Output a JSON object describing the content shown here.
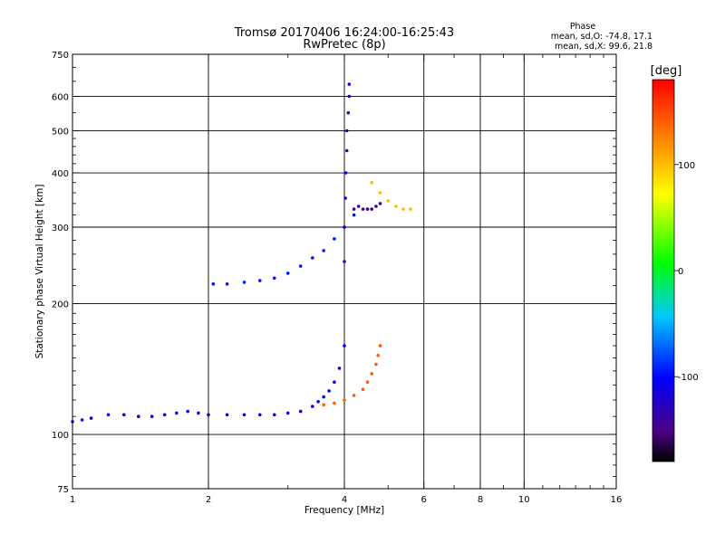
{
  "chart_data": {
    "type": "scatter",
    "title": "Tromsø 20170406 16:24:00-16:25:43",
    "subtitle": "RwPretec (8p)",
    "phase_stats": {
      "heading": "Phase",
      "line1": "mean, sd,O: -74.8, 17.1",
      "line2": "mean, sd,X:  99.6, 21.8"
    },
    "xlabel": "Frequency [MHz]",
    "ylabel": "Stationary phase Virtual Height [km]",
    "x_scale": "log",
    "y_scale": "log",
    "xlim": [
      1,
      16
    ],
    "ylim": [
      75,
      750
    ],
    "x_ticks": [
      1,
      2,
      4,
      6,
      8,
      10,
      16
    ],
    "x_tick_labels": [
      "1",
      "2",
      "4",
      "6",
      "8",
      "10",
      "16"
    ],
    "y_ticks": [
      75,
      100,
      200,
      300,
      400,
      500,
      600,
      750
    ],
    "y_tick_labels": [
      "75",
      "100",
      "200",
      "300",
      "400",
      "500",
      "600",
      "750"
    ],
    "grid": true,
    "colorbar": {
      "label": "[deg]",
      "range": [
        -180,
        180
      ],
      "ticks": [
        100,
        0,
        -100
      ],
      "tick_labels": [
        "100",
        "0",
        "-100"
      ]
    },
    "series": [
      {
        "trace": "O-mode low trace",
        "x": [
          1.0,
          1.05,
          1.1,
          1.2,
          1.3,
          1.4,
          1.5,
          1.6,
          1.7,
          1.8,
          1.9,
          2.0,
          2.2,
          2.4,
          2.6,
          2.8,
          3.0,
          3.2,
          3.4,
          3.5,
          3.6,
          3.7,
          3.8,
          3.9,
          4.0
        ],
        "y": [
          107,
          108,
          109,
          111,
          111,
          110,
          110,
          111,
          112,
          113,
          112,
          111,
          111,
          111,
          111,
          111,
          112,
          113,
          116,
          119,
          122,
          126,
          132,
          142,
          160
        ],
        "phase": -100
      },
      {
        "trace": "O-mode upper F trace",
        "x": [
          2.05,
          2.2,
          2.4,
          2.6,
          2.8,
          3.0,
          3.2,
          3.4,
          3.6,
          3.8,
          4.0,
          4.2
        ],
        "y": [
          222,
          222,
          224,
          226,
          229,
          235,
          244,
          255,
          265,
          282,
          300,
          320
        ],
        "phase": -95
      },
      {
        "trace": "O-mode vertical cusp near 4 MHz",
        "x": [
          4.0,
          4.0,
          4.02,
          4.03,
          4.05,
          4.05,
          4.08,
          4.1,
          4.1
        ],
        "y": [
          250,
          300,
          350,
          400,
          450,
          500,
          550,
          600,
          640
        ],
        "phase": -120
      },
      {
        "trace": "O-mode 4.2-4.8 MHz cluster",
        "x": [
          4.2,
          4.3,
          4.4,
          4.5,
          4.6,
          4.7,
          4.8
        ],
        "y": [
          330,
          335,
          330,
          330,
          330,
          335,
          340
        ],
        "phase": -140
      },
      {
        "trace": "X-mode low trace",
        "x": [
          3.6,
          3.8,
          4.0,
          4.2,
          4.4,
          4.5,
          4.6,
          4.7,
          4.75,
          4.8
        ],
        "y": [
          117,
          118,
          120,
          123,
          127,
          132,
          138,
          145,
          152,
          160
        ],
        "phase": 140
      },
      {
        "trace": "X-mode upper cluster",
        "x": [
          4.6,
          4.8,
          5.0,
          5.2,
          5.4,
          5.6
        ],
        "y": [
          380,
          360,
          345,
          335,
          330,
          330
        ],
        "phase": 100
      }
    ]
  }
}
